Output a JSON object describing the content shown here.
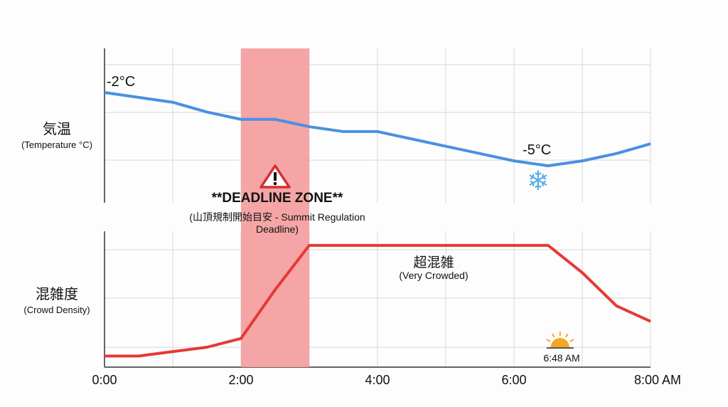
{
  "chart_data": [
    {
      "type": "line",
      "ylabel": "気温",
      "ylabel_sub": "(Temperature °C)",
      "x": [
        0,
        1,
        1.5,
        2,
        2.5,
        3,
        3.5,
        4,
        4.5,
        5,
        5.5,
        6,
        6.5,
        7,
        7.5,
        8
      ],
      "series": [
        {
          "values": [
            -2.0,
            -2.4,
            -2.8,
            -3.1,
            -3.1,
            -3.4,
            -3.6,
            -3.6,
            -3.9,
            -4.2,
            -4.5,
            -4.8,
            -5.0,
            -4.8,
            -4.5,
            -4.1
          ],
          "color": "#4a90e2"
        }
      ],
      "annotations": {
        "start": "-2°C",
        "min": "-5°C",
        "min_icon": "snowflake-icon"
      },
      "grid": true
    },
    {
      "type": "line",
      "ylabel": "混雑度",
      "ylabel_sub": "(Crowd Density)",
      "x": [
        0,
        0.5,
        1,
        1.5,
        2,
        2.5,
        3,
        6.5,
        7,
        7.5,
        8
      ],
      "series": [
        {
          "values": [
            0.82,
            0.82,
            0.91,
            1.0,
            1.18,
            2.18,
            3.09,
            3.09,
            2.53,
            1.85,
            1.53
          ],
          "color": "#e53935"
        }
      ],
      "annotations": {
        "peak": "超混雑",
        "peak_sub": "(Very Crowded)",
        "sunrise": "6:48 AM",
        "sunrise_hour": 6.8,
        "sunrise_icon": "sunrise-icon"
      },
      "grid": true
    }
  ],
  "shared": {
    "xlim": [
      0,
      8
    ],
    "x_ticks": [
      "0:00",
      "2:00",
      "4:00",
      "6:00",
      "8:00 AM"
    ],
    "deadline_zone": {
      "from": 2,
      "to": 3,
      "color": "#f4a0a0",
      "title": "**DEADLINE ZONE**",
      "subtitle_1": "(山頂規制開始目安 - Summit Regulation",
      "subtitle_2": "Deadline)",
      "icon": "warning-icon"
    }
  }
}
